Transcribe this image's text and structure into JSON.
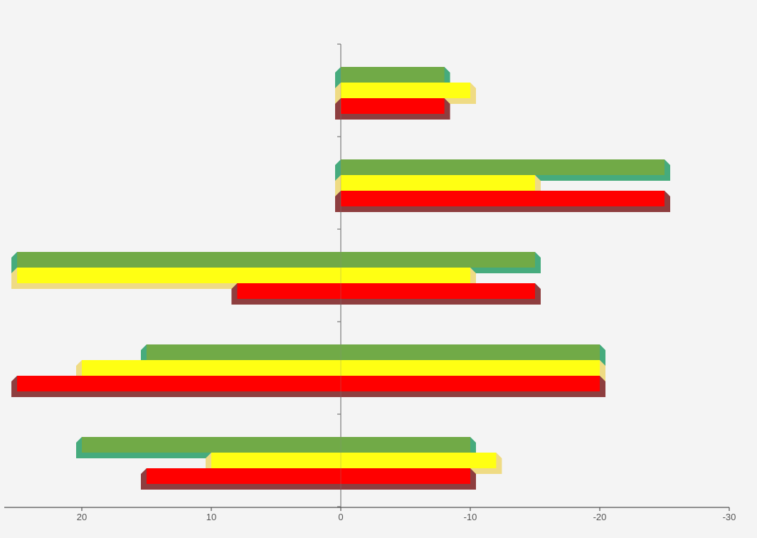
{
  "chart_data": {
    "type": "bar",
    "orientation": "horizontal",
    "x_axis_reversed": true,
    "xlim": [
      25,
      -30
    ],
    "x_ticks": [
      20,
      10,
      0,
      -10,
      -20,
      -30
    ],
    "x_tick_labels": [
      "20",
      "10",
      "0",
      "-10",
      "-20",
      "-30"
    ],
    "groups": [
      {
        "bars": [
          {
            "color": "#71aa47",
            "side_color": "#46ab7d",
            "start": 0,
            "end": -8
          },
          {
            "color": "#ffff13",
            "side_color": "#efdb84",
            "start": 0,
            "end": -10
          },
          {
            "color": "#ff0000",
            "side_color": "#8e3e3f",
            "start": 0,
            "end": -8
          }
        ]
      },
      {
        "bars": [
          {
            "color": "#71aa47",
            "side_color": "#46ab7d",
            "start": 0,
            "end": -25
          },
          {
            "color": "#ffff13",
            "side_color": "#efdb84",
            "start": 0,
            "end": -15
          },
          {
            "color": "#ff0000",
            "side_color": "#8e3e3f",
            "start": 0,
            "end": -25
          }
        ]
      },
      {
        "bars": [
          {
            "color": "#71aa47",
            "side_color": "#46ab7d",
            "start": 25,
            "end": -15
          },
          {
            "color": "#ffff13",
            "side_color": "#efdb84",
            "start": 25,
            "end": -10
          },
          {
            "color": "#ff0000",
            "side_color": "#8e3e3f",
            "start": 8,
            "end": -15
          }
        ]
      },
      {
        "bars": [
          {
            "color": "#71aa47",
            "side_color": "#46ab7d",
            "start": 15,
            "end": -20
          },
          {
            "color": "#ffff13",
            "side_color": "#efdb84",
            "start": 20,
            "end": -20
          },
          {
            "color": "#ff0000",
            "side_color": "#8e3e3f",
            "start": 25,
            "end": -20
          }
        ]
      },
      {
        "bars": [
          {
            "color": "#71aa47",
            "side_color": "#46ab7d",
            "start": 20,
            "end": -10
          },
          {
            "color": "#ffff13",
            "side_color": "#efdb84",
            "start": 10,
            "end": -12
          },
          {
            "color": "#ff0000",
            "side_color": "#8e3e3f",
            "start": 15,
            "end": -10
          }
        ]
      }
    ],
    "grid": false,
    "legend": "none"
  }
}
